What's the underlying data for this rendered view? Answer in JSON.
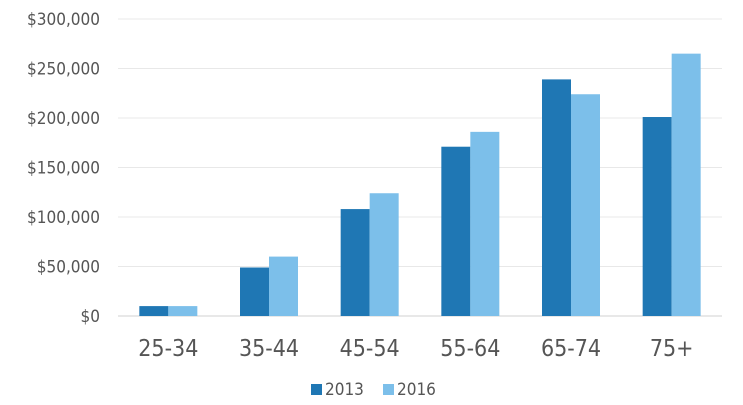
{
  "chart_data": {
    "type": "bar",
    "categories": [
      "25-34",
      "35-44",
      "45-54",
      "55-64",
      "65-74",
      "75+"
    ],
    "series": [
      {
        "name": "2013",
        "color": "#1f77b4",
        "values": [
          10000,
          49000,
          108000,
          171000,
          239000,
          201000
        ]
      },
      {
        "name": "2016",
        "color": "#7cbfea",
        "values": [
          10000,
          60000,
          124000,
          186000,
          224000,
          265000
        ]
      }
    ],
    "title": "",
    "xlabel": "",
    "ylabel": "",
    "ylim": [
      0,
      300000
    ],
    "yticks": [
      0,
      50000,
      100000,
      150000,
      200000,
      250000,
      300000
    ],
    "ytick_labels": [
      "$0",
      "$50,000",
      "$100,000",
      "$150,000",
      "$200,000",
      "$250,000",
      "$300,000"
    ],
    "grid": true,
    "legend_position": "bottom"
  }
}
